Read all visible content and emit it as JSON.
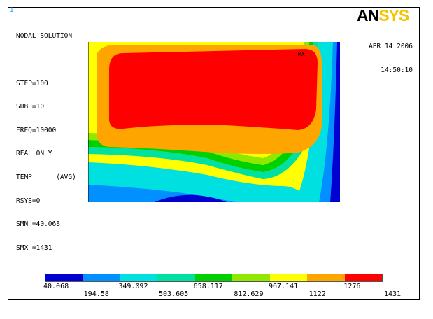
{
  "window_number": "1",
  "logo": {
    "part1": "AN",
    "part2": "SYS"
  },
  "info_lines": [
    "NODAL SOLUTION",
    "",
    "STEP=100",
    "SUB =10",
    "FREQ=10000",
    "REAL ONLY",
    "TEMP      (AVG)",
    "RSYS=0",
    "SMN =40.068",
    "SMX =1431"
  ],
  "date": "APR 14 2006",
  "time": "14:50:10",
  "mx_label": "MX",
  "legend": {
    "colors": [
      "#0000d0",
      "#0090ff",
      "#00e0e0",
      "#00e0a0",
      "#00d000",
      "#90e800",
      "#ffff00",
      "#ffa500",
      "#ff0000"
    ],
    "labels_top": [
      "40.068",
      "349.092",
      "658.117",
      "967.141",
      "1276"
    ],
    "labels_bottom": [
      "194.58",
      "503.605",
      "812.629",
      "1122",
      "1431"
    ]
  },
  "colors": {
    "red": "#ff0000",
    "orange": "#ffa500",
    "yellow": "#ffff00",
    "yellow_green": "#90e800",
    "green": "#00d000",
    "cyan_green": "#00e0a0",
    "cyan": "#00e0e0",
    "light_blue": "#0090ff",
    "blue": "#0000d0"
  }
}
